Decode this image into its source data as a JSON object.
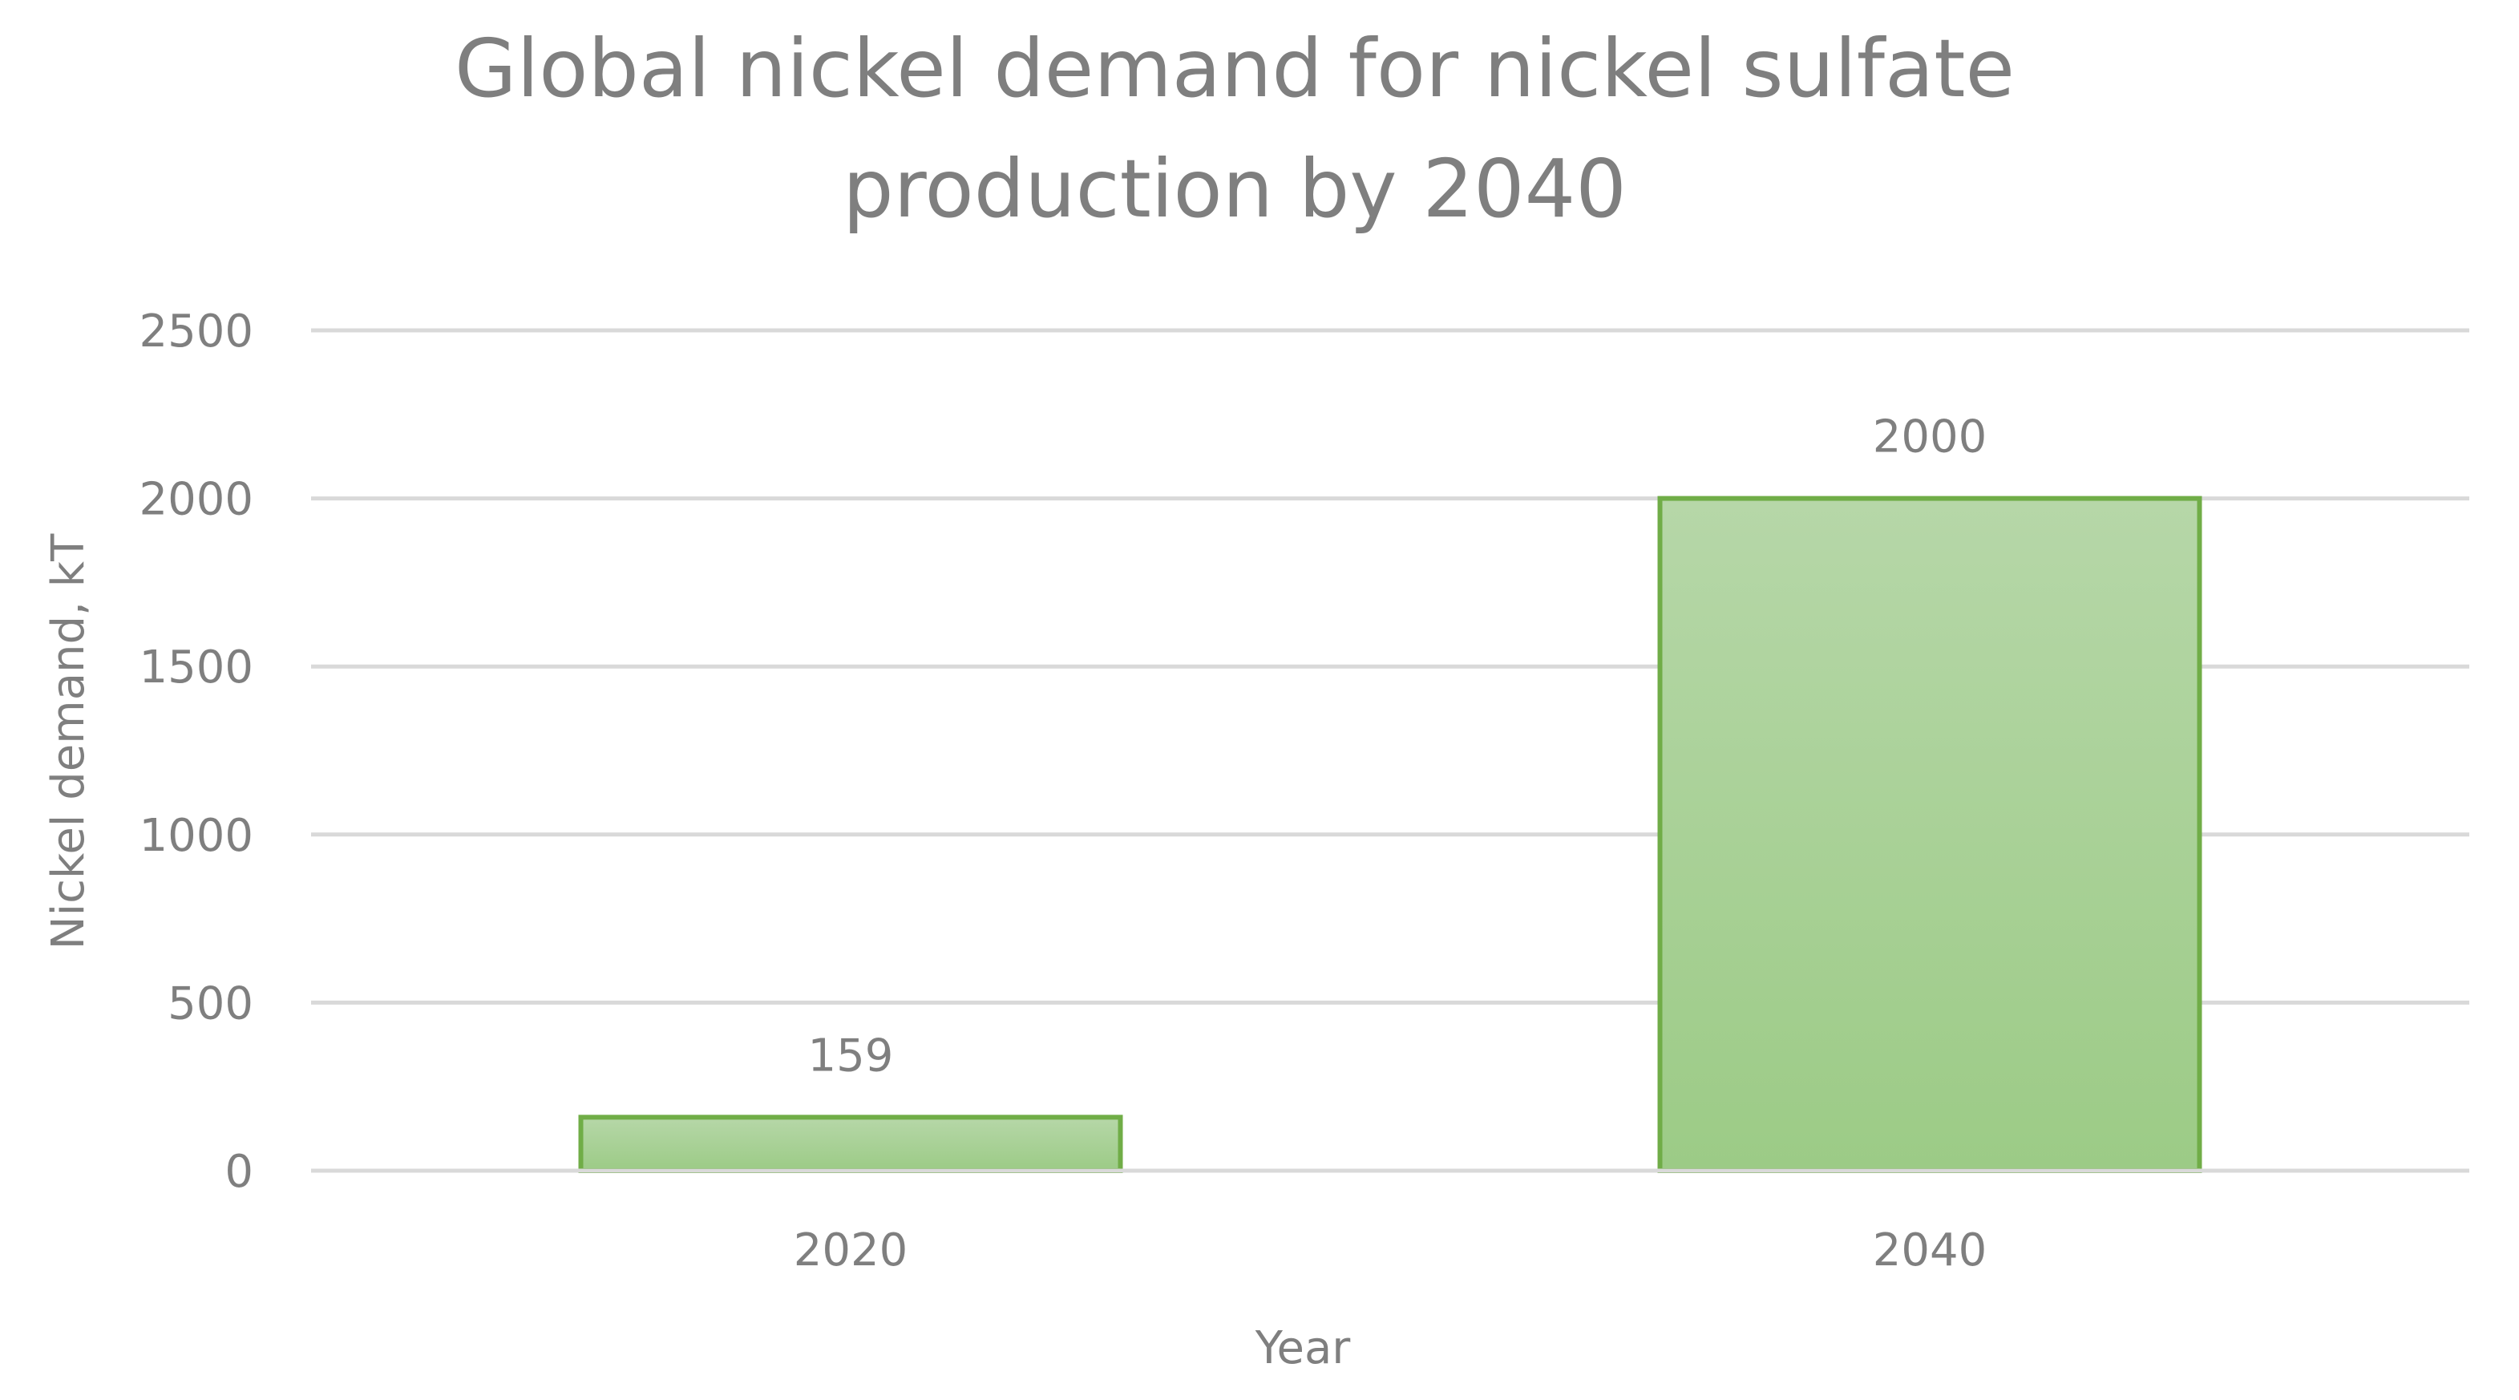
{
  "chart_data": {
    "type": "bar",
    "title_lines": [
      "Global nickel demand for nickel sulfate",
      "production  by 2040"
    ],
    "xlabel": "Year",
    "ylabel": "Nickel demand, kT",
    "categories": [
      "2020",
      "2040"
    ],
    "values": [
      159,
      2000
    ],
    "data_labels": [
      "159",
      "2000"
    ],
    "ylim": [
      0,
      2500
    ],
    "yticks": [
      0,
      500,
      1000,
      1500,
      2000,
      2500
    ],
    "grid": true,
    "legend": "none",
    "colors": {
      "bar_fill_top": "#b6d7a8",
      "bar_fill_bottom": "#9ccb86",
      "bar_stroke": "#70ad47",
      "text": "#7f7f7f",
      "grid": "#d9d9d9"
    }
  }
}
